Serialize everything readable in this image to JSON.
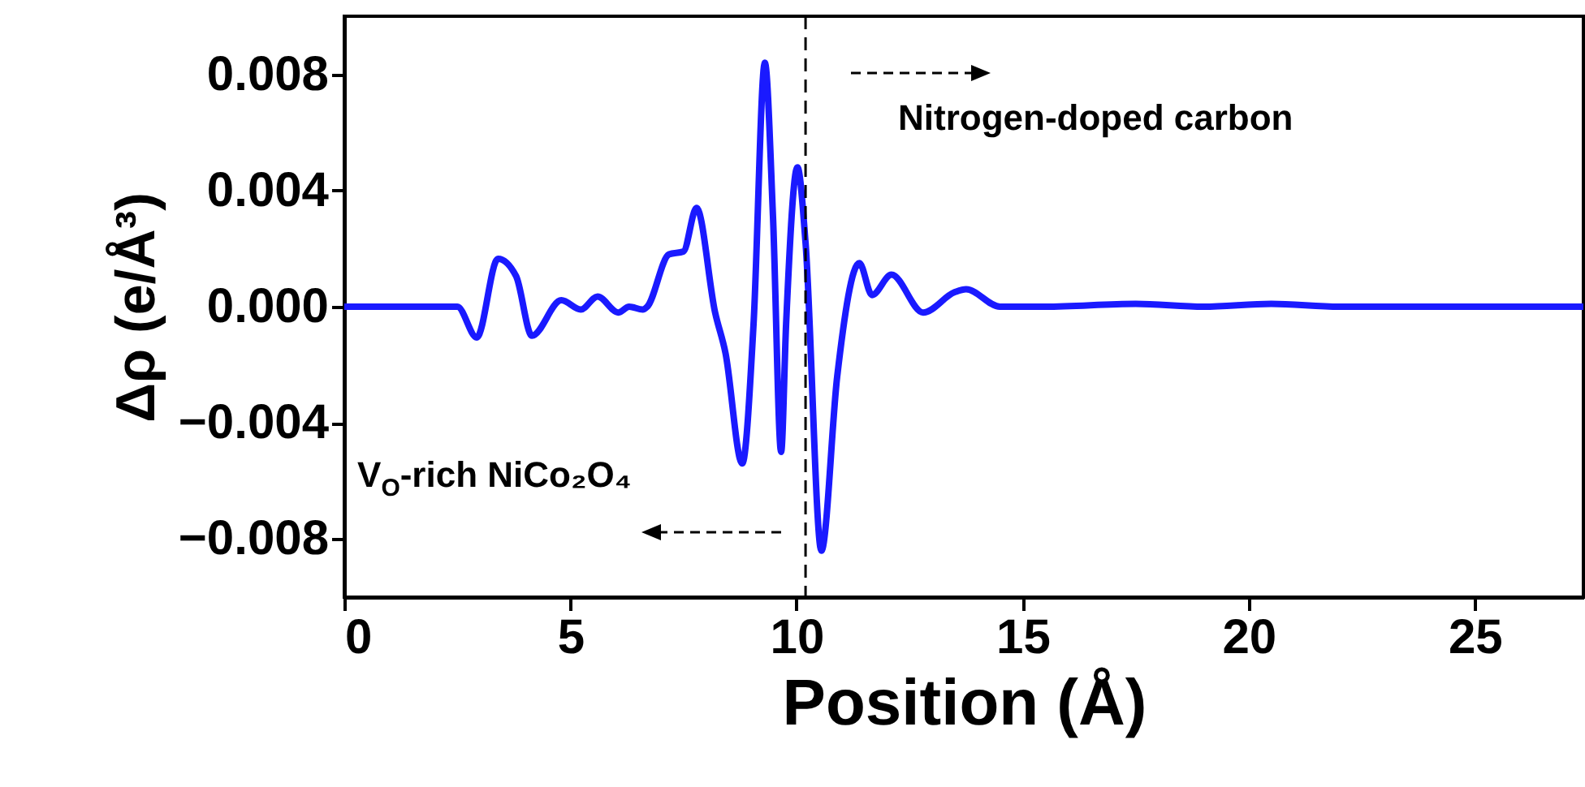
{
  "chart_data": {
    "type": "line",
    "xlabel": "Position (Å)",
    "ylabel": "Δρ (e/Å³)",
    "x": [
      0,
      1,
      2,
      2.5,
      2.93,
      3.4,
      3.8,
      4.15,
      4.8,
      5.23,
      5.6,
      6.06,
      6.3,
      6.6,
      6.7,
      7.18,
      7.5,
      7.79,
      8.2,
      8.43,
      8.8,
      9.05,
      9.3,
      9.48,
      9.66,
      9.77,
      10.02,
      10.2,
      10.55,
      10.9,
      11.39,
      11.67,
      12.1,
      12.8,
      13.5,
      13.75,
      14.5,
      15.5,
      17.5,
      19,
      20.5,
      22,
      24,
      26,
      27.4
    ],
    "series": [
      {
        "color": "#1a1aff",
        "values": [
          0,
          0,
          0,
          0,
          -0.00106,
          0.00165,
          0.00105,
          -0.001,
          0.00022,
          -0.0001,
          0.00035,
          -0.0002,
          0,
          -0.0001,
          0,
          0.0018,
          0.0019,
          0.0034,
          -0.0002,
          -0.0016,
          -0.0054,
          -0.0006,
          0.0084,
          0.0031,
          -0.005,
          -0.0006,
          0.0048,
          0.0022,
          -0.0084,
          -0.0024,
          0.0015,
          0.0004,
          0.0011,
          -0.0002,
          0.0005,
          0.0006,
          0,
          0,
          0.0001,
          0,
          0.0001,
          0,
          0,
          0,
          0
        ]
      }
    ],
    "xlim": [
      0,
      27.4
    ],
    "xticks": [
      0,
      5,
      10,
      15,
      20,
      25
    ],
    "ylim": [
      -0.01,
      0.01
    ],
    "yticks": [
      -0.008,
      -0.004,
      {
        "value": 0,
        "label": "0.000"
      },
      0.004,
      0.008
    ],
    "ref_lines": [
      {
        "axis": "x",
        "value": 10.2,
        "color": "#000000",
        "line_style": "dashed"
      }
    ],
    "annotations": [
      "Nitrogen-doped carbon",
      "V$_{O}$-rich NiCo₂O₄"
    ],
    "grid": false,
    "marker": "none",
    "line_style": "solid"
  }
}
